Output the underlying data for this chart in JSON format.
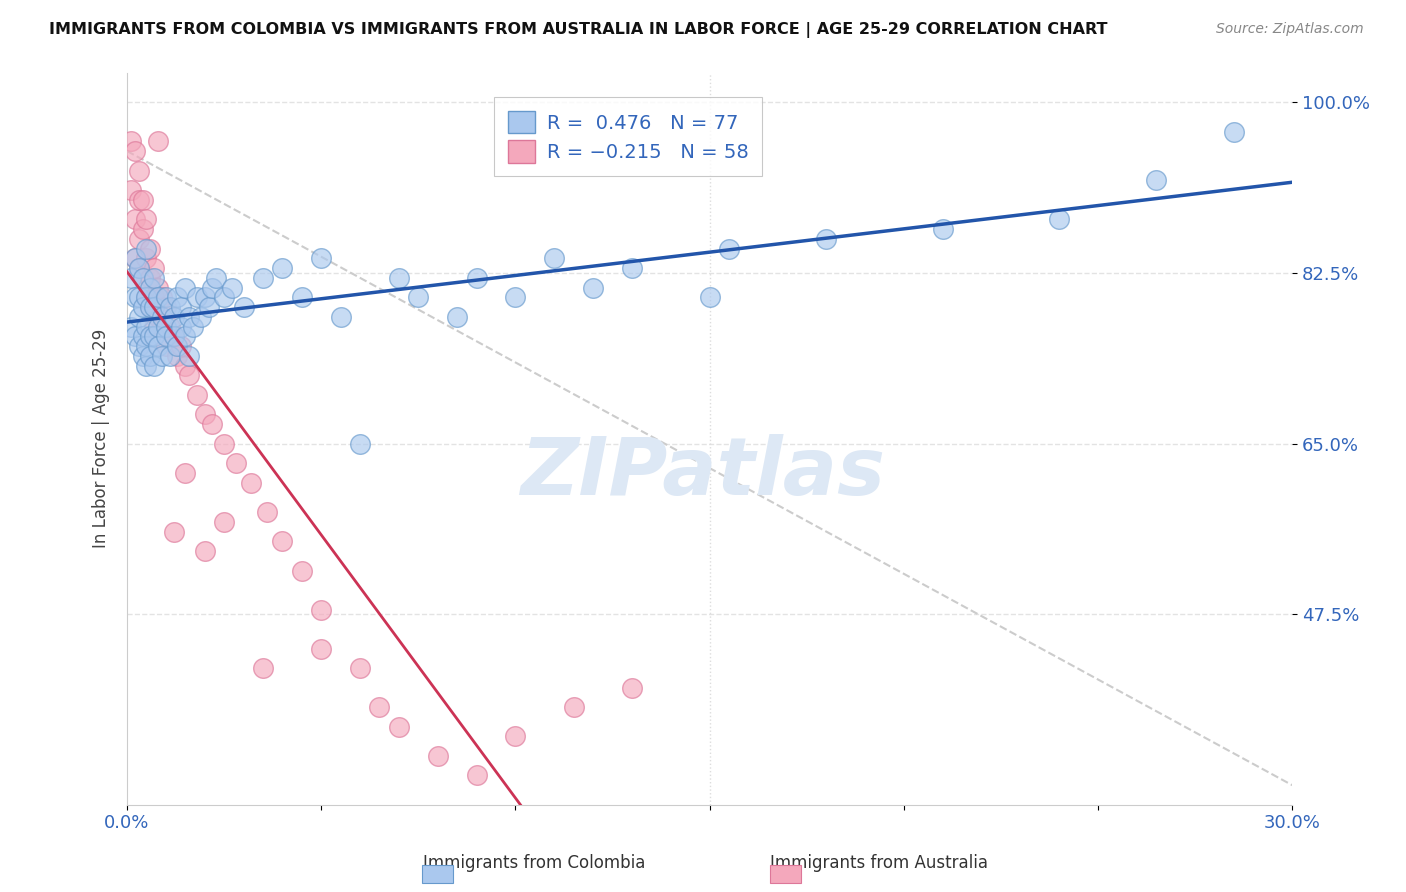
{
  "title": "IMMIGRANTS FROM COLOMBIA VS IMMIGRANTS FROM AUSTRALIA IN LABOR FORCE | AGE 25-29 CORRELATION CHART",
  "source": "Source: ZipAtlas.com",
  "ylabel": "In Labor Force | Age 25-29",
  "xlim": [
    0.0,
    0.3
  ],
  "ylim": [
    0.28,
    1.03
  ],
  "ytick_labels": [
    "100.0%",
    "82.5%",
    "65.0%",
    "47.5%"
  ],
  "ytick_values": [
    1.0,
    0.825,
    0.65,
    0.475
  ],
  "colombia_color": "#aac8ee",
  "australia_color": "#f4a8bc",
  "colombia_edge": "#6699cc",
  "australia_edge": "#dd7799",
  "trend_colombia_color": "#2255aa",
  "trend_australia_color": "#cc3355",
  "diag_line_color": "#cccccc",
  "legend_R_colombia": "R =  0.476",
  "legend_N_colombia": "N = 77",
  "legend_R_australia": "R = −0.215",
  "legend_N_australia": "N = 58",
  "colombia_x": [
    0.001,
    0.001,
    0.002,
    0.002,
    0.002,
    0.003,
    0.003,
    0.003,
    0.003,
    0.004,
    0.004,
    0.004,
    0.004,
    0.005,
    0.005,
    0.005,
    0.005,
    0.005,
    0.006,
    0.006,
    0.006,
    0.006,
    0.007,
    0.007,
    0.007,
    0.007,
    0.008,
    0.008,
    0.008,
    0.009,
    0.009,
    0.01,
    0.01,
    0.01,
    0.011,
    0.011,
    0.012,
    0.012,
    0.013,
    0.013,
    0.014,
    0.014,
    0.015,
    0.015,
    0.016,
    0.016,
    0.017,
    0.018,
    0.019,
    0.02,
    0.021,
    0.022,
    0.023,
    0.025,
    0.027,
    0.03,
    0.035,
    0.04,
    0.05,
    0.06,
    0.075,
    0.09,
    0.11,
    0.13,
    0.155,
    0.18,
    0.21,
    0.24,
    0.265,
    0.285,
    0.15,
    0.045,
    0.055,
    0.07,
    0.085,
    0.1,
    0.12
  ],
  "colombia_y": [
    0.77,
    0.82,
    0.8,
    0.76,
    0.84,
    0.78,
    0.83,
    0.75,
    0.8,
    0.76,
    0.82,
    0.79,
    0.74,
    0.77,
    0.8,
    0.75,
    0.73,
    0.85,
    0.76,
    0.79,
    0.74,
    0.81,
    0.76,
    0.79,
    0.73,
    0.82,
    0.77,
    0.8,
    0.75,
    0.78,
    0.74,
    0.77,
    0.8,
    0.76,
    0.79,
    0.74,
    0.78,
    0.76,
    0.8,
    0.75,
    0.79,
    0.77,
    0.76,
    0.81,
    0.78,
    0.74,
    0.77,
    0.8,
    0.78,
    0.8,
    0.79,
    0.81,
    0.82,
    0.8,
    0.81,
    0.79,
    0.82,
    0.83,
    0.84,
    0.65,
    0.8,
    0.82,
    0.84,
    0.83,
    0.85,
    0.86,
    0.87,
    0.88,
    0.92,
    0.97,
    0.8,
    0.8,
    0.78,
    0.82,
    0.78,
    0.8,
    0.81
  ],
  "australia_x": [
    0.001,
    0.001,
    0.002,
    0.002,
    0.002,
    0.003,
    0.003,
    0.003,
    0.003,
    0.004,
    0.004,
    0.004,
    0.005,
    0.005,
    0.005,
    0.006,
    0.006,
    0.006,
    0.007,
    0.007,
    0.007,
    0.008,
    0.008,
    0.009,
    0.009,
    0.01,
    0.01,
    0.011,
    0.012,
    0.013,
    0.014,
    0.015,
    0.016,
    0.018,
    0.02,
    0.022,
    0.025,
    0.028,
    0.032,
    0.036,
    0.04,
    0.045,
    0.05,
    0.06,
    0.07,
    0.08,
    0.09,
    0.1,
    0.115,
    0.13,
    0.012,
    0.02,
    0.008,
    0.015,
    0.025,
    0.035,
    0.05,
    0.065
  ],
  "australia_y": [
    0.96,
    0.91,
    0.95,
    0.88,
    0.84,
    0.93,
    0.9,
    0.86,
    0.83,
    0.9,
    0.87,
    0.82,
    0.88,
    0.84,
    0.8,
    0.85,
    0.82,
    0.79,
    0.83,
    0.8,
    0.77,
    0.81,
    0.78,
    0.8,
    0.77,
    0.79,
    0.75,
    0.77,
    0.76,
    0.74,
    0.75,
    0.73,
    0.72,
    0.7,
    0.68,
    0.67,
    0.65,
    0.63,
    0.61,
    0.58,
    0.55,
    0.52,
    0.48,
    0.42,
    0.36,
    0.33,
    0.31,
    0.35,
    0.38,
    0.4,
    0.56,
    0.54,
    0.96,
    0.62,
    0.57,
    0.42,
    0.44,
    0.38
  ],
  "background_color": "#ffffff",
  "grid_color": "#dddddd",
  "watermark": "ZIPatlas"
}
